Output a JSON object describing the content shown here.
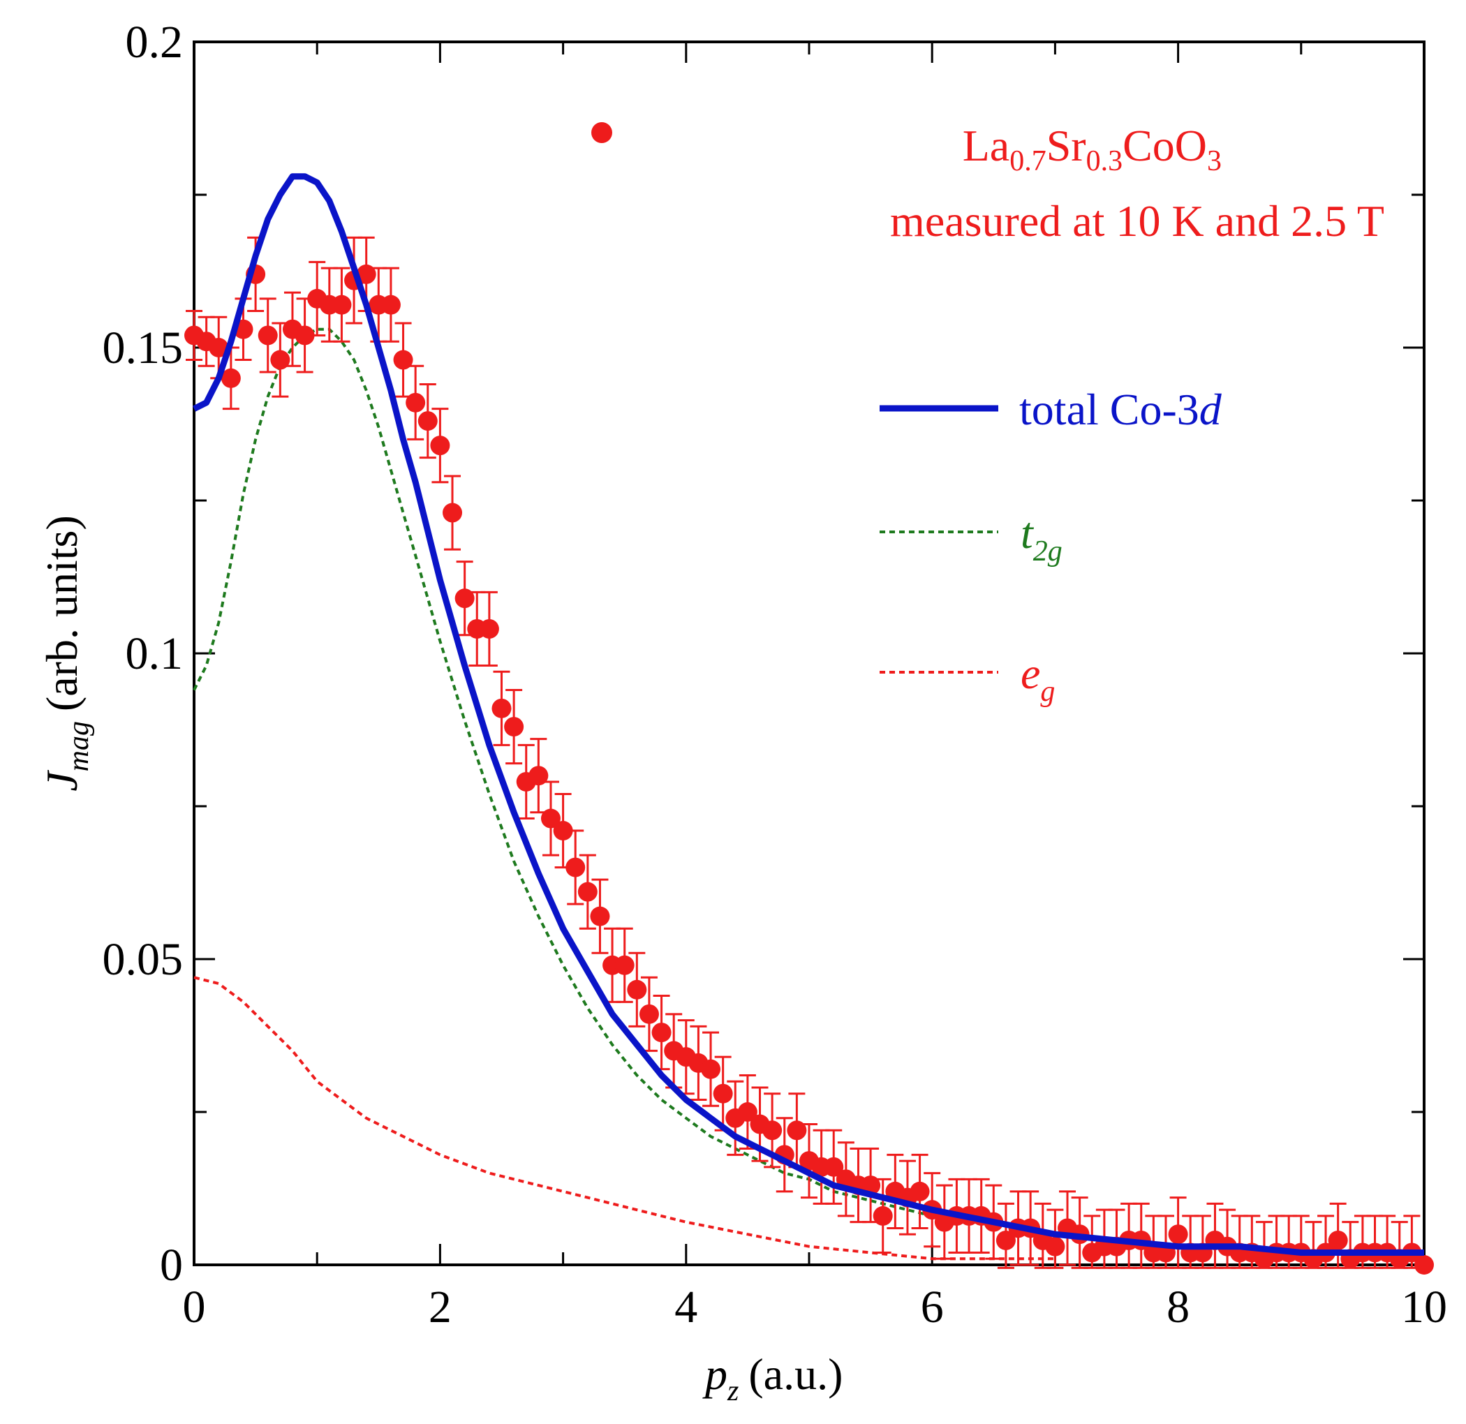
{
  "chart_data": {
    "type": "scatter",
    "x_axis": {
      "label_main": "p",
      "label_sub": "z",
      "label_unit": "(a.u.)",
      "range": [
        0,
        10
      ],
      "major_ticks": [
        0,
        2,
        4,
        6,
        8,
        10
      ],
      "tick_labels": [
        "0",
        "2",
        "4",
        "6",
        "8",
        "10"
      ],
      "minor_step": 1
    },
    "y_axis": {
      "label_main": "J",
      "label_sub": "mag",
      "label_unit": "(arb. units)",
      "range": [
        0,
        0.2
      ],
      "major_ticks": [
        0,
        0.05,
        0.1,
        0.15,
        0.2
      ],
      "tick_labels": [
        "0",
        "0.05",
        "0.1",
        "0.15",
        "0.2"
      ],
      "minor_step": 0.025
    },
    "grid": false,
    "legend": {
      "position": "top-right",
      "sample": {
        "parts": [
          {
            "text": "La",
            "sub": "0.7"
          },
          {
            "text": "Sr",
            "sub": "0.3"
          },
          {
            "text": "CoO",
            "sub": "3"
          }
        ],
        "line2": "measured at 10 K and 2.5 T"
      },
      "total": {
        "text": "total Co-3",
        "italic": "d"
      },
      "t2g": {
        "italic": "t",
        "sub": "2g"
      },
      "eg": {
        "italic": "e",
        "sub": "g"
      }
    },
    "colors": {
      "measured": "#ee1c1c",
      "total": "#0a14c8",
      "t2g": "#1e7a1e",
      "eg": "#ee1c1c"
    },
    "series": [
      {
        "name": "La0.7Sr0.3CoO3 measured at 10 K and 2.5 T",
        "kind": "points-with-errorbars",
        "x": [
          0.0,
          0.1,
          0.2,
          0.3,
          0.4,
          0.5,
          0.6,
          0.7,
          0.8,
          0.9,
          1.0,
          1.1,
          1.2,
          1.3,
          1.4,
          1.5,
          1.6,
          1.7,
          1.8,
          1.9,
          2.0,
          2.1,
          2.2,
          2.3,
          2.4,
          2.5,
          2.6,
          2.7,
          2.8,
          2.9,
          3.0,
          3.1,
          3.2,
          3.3,
          3.4,
          3.5,
          3.6,
          3.7,
          3.8,
          3.9,
          4.0,
          4.1,
          4.2,
          4.3,
          4.4,
          4.5,
          4.6,
          4.7,
          4.8,
          4.9,
          5.0,
          5.1,
          5.2,
          5.3,
          5.4,
          5.5,
          5.6,
          5.7,
          5.8,
          5.9,
          6.0,
          6.1,
          6.2,
          6.3,
          6.4,
          6.5,
          6.6,
          6.7,
          6.8,
          6.9,
          7.0,
          7.1,
          7.2,
          7.3,
          7.4,
          7.5,
          7.6,
          7.7,
          7.8,
          7.9,
          8.0,
          8.1,
          8.2,
          8.3,
          8.4,
          8.5,
          8.6,
          8.7,
          8.8,
          8.9,
          9.0,
          9.1,
          9.2,
          9.3,
          9.4,
          9.5,
          9.6,
          9.7,
          9.8,
          9.9,
          10.0
        ],
        "y": [
          0.152,
          0.151,
          0.15,
          0.145,
          0.153,
          0.162,
          0.152,
          0.148,
          0.153,
          0.152,
          0.158,
          0.157,
          0.157,
          0.161,
          0.162,
          0.157,
          0.157,
          0.148,
          0.141,
          0.138,
          0.134,
          0.123,
          0.109,
          0.104,
          0.104,
          0.091,
          0.088,
          0.079,
          0.08,
          0.073,
          0.071,
          0.065,
          0.061,
          0.057,
          0.049,
          0.049,
          0.045,
          0.041,
          0.038,
          0.035,
          0.034,
          0.033,
          0.032,
          0.028,
          0.024,
          0.025,
          0.023,
          0.022,
          0.018,
          0.022,
          0.017,
          0.016,
          0.016,
          0.014,
          0.013,
          0.013,
          0.008,
          0.012,
          0.011,
          0.012,
          0.009,
          0.007,
          0.008,
          0.008,
          0.008,
          0.007,
          0.004,
          0.006,
          0.006,
          0.004,
          0.003,
          0.006,
          0.005,
          0.002,
          0.003,
          0.003,
          0.004,
          0.004,
          0.002,
          0.002,
          0.005,
          0.002,
          0.002,
          0.004,
          0.003,
          0.002,
          0.002,
          0.001,
          0.002,
          0.002,
          0.002,
          0.001,
          0.002,
          0.004,
          0.001,
          0.002,
          0.002,
          0.002,
          0.001,
          0.002,
          0.0
        ],
        "error": [
          0.004,
          0.004,
          0.005,
          0.005,
          0.005,
          0.006,
          0.006,
          0.006,
          0.006,
          0.006,
          0.006,
          0.006,
          0.006,
          0.007,
          0.006,
          0.006,
          0.006,
          0.006,
          0.006,
          0.006,
          0.006,
          0.006,
          0.006,
          0.006,
          0.006,
          0.006,
          0.006,
          0.006,
          0.006,
          0.006,
          0.006,
          0.006,
          0.006,
          0.006,
          0.006,
          0.006,
          0.006,
          0.006,
          0.006,
          0.006,
          0.006,
          0.006,
          0.006,
          0.006,
          0.006,
          0.006,
          0.006,
          0.006,
          0.006,
          0.006,
          0.006,
          0.006,
          0.006,
          0.006,
          0.006,
          0.006,
          0.006,
          0.006,
          0.006,
          0.006,
          0.006,
          0.006,
          0.006,
          0.006,
          0.006,
          0.006,
          0.006,
          0.006,
          0.006,
          0.006,
          0.006,
          0.006,
          0.006,
          0.006,
          0.006,
          0.006,
          0.006,
          0.006,
          0.006,
          0.006,
          0.006,
          0.006,
          0.006,
          0.006,
          0.006,
          0.006,
          0.006,
          0.006,
          0.006,
          0.006,
          0.006,
          0.006,
          0.006,
          0.006,
          0.006,
          0.006,
          0.006,
          0.006,
          0.006,
          0.006,
          0.0
        ]
      },
      {
        "name": "total Co-3d",
        "kind": "line",
        "style": "solid",
        "x": [
          0.0,
          0.1,
          0.2,
          0.3,
          0.4,
          0.5,
          0.6,
          0.7,
          0.8,
          0.9,
          1.0,
          1.1,
          1.2,
          1.3,
          1.4,
          1.5,
          1.6,
          1.7,
          1.8,
          1.9,
          2.0,
          2.2,
          2.4,
          2.6,
          2.8,
          3.0,
          3.2,
          3.4,
          3.6,
          3.8,
          4.0,
          4.2,
          4.4,
          4.6,
          4.8,
          5.0,
          5.2,
          5.4,
          5.6,
          5.8,
          6.0,
          6.5,
          7.0,
          7.5,
          8.0,
          8.5,
          9.0,
          9.5,
          10.0
        ],
        "y": [
          0.14,
          0.141,
          0.145,
          0.151,
          0.158,
          0.165,
          0.171,
          0.175,
          0.178,
          0.178,
          0.177,
          0.174,
          0.169,
          0.163,
          0.157,
          0.15,
          0.143,
          0.135,
          0.128,
          0.12,
          0.112,
          0.098,
          0.085,
          0.074,
          0.064,
          0.055,
          0.048,
          0.041,
          0.036,
          0.031,
          0.027,
          0.024,
          0.021,
          0.019,
          0.017,
          0.015,
          0.013,
          0.012,
          0.011,
          0.01,
          0.009,
          0.007,
          0.005,
          0.004,
          0.003,
          0.003,
          0.002,
          0.002,
          0.002
        ]
      },
      {
        "name": "t2g",
        "kind": "line",
        "style": "dotted",
        "x": [
          0.0,
          0.1,
          0.2,
          0.3,
          0.4,
          0.5,
          0.6,
          0.7,
          0.8,
          0.9,
          1.0,
          1.1,
          1.2,
          1.3,
          1.4,
          1.5,
          1.6,
          1.7,
          1.8,
          1.9,
          2.0,
          2.2,
          2.4,
          2.6,
          2.8,
          3.0,
          3.2,
          3.4,
          3.6,
          3.8,
          4.0,
          4.2,
          4.4,
          4.6,
          4.8,
          5.0,
          5.2,
          5.4,
          5.6,
          5.8,
          6.0,
          6.5,
          7.0,
          7.5,
          8.0,
          8.5,
          9.0,
          9.5,
          10.0
        ],
        "y": [
          0.094,
          0.098,
          0.105,
          0.115,
          0.126,
          0.135,
          0.142,
          0.147,
          0.15,
          0.152,
          0.153,
          0.153,
          0.151,
          0.148,
          0.143,
          0.137,
          0.13,
          0.123,
          0.116,
          0.109,
          0.102,
          0.089,
          0.077,
          0.066,
          0.057,
          0.049,
          0.042,
          0.036,
          0.031,
          0.027,
          0.024,
          0.021,
          0.019,
          0.017,
          0.015,
          0.014,
          0.012,
          0.011,
          0.01,
          0.009,
          0.008,
          0.007,
          0.005,
          0.004,
          0.003,
          0.003,
          0.002,
          0.002,
          0.002
        ]
      },
      {
        "name": "eg",
        "kind": "line",
        "style": "dotted",
        "x": [
          0.0,
          0.2,
          0.4,
          0.6,
          0.8,
          1.0,
          1.2,
          1.4,
          1.6,
          1.8,
          2.0,
          2.4,
          2.8,
          3.2,
          3.6,
          4.0,
          4.5,
          5.0,
          5.5,
          6.0,
          6.5,
          7.0
        ],
        "y": [
          0.047,
          0.046,
          0.043,
          0.039,
          0.035,
          0.03,
          0.027,
          0.024,
          0.022,
          0.02,
          0.018,
          0.015,
          0.013,
          0.011,
          0.009,
          0.007,
          0.005,
          0.003,
          0.002,
          0.001,
          0.001,
          0.001
        ]
      }
    ]
  }
}
